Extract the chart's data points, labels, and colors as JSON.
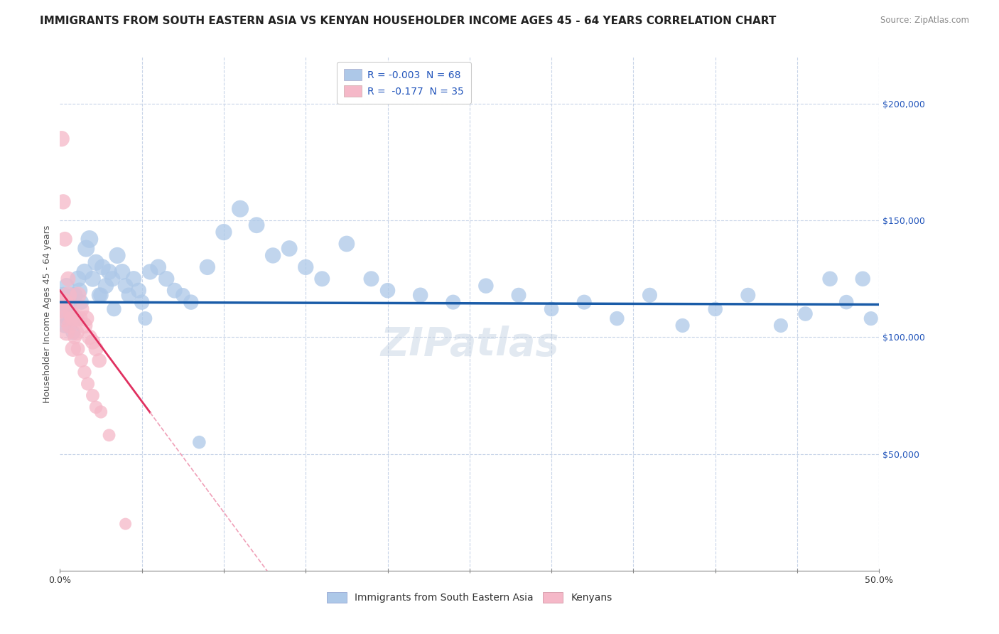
{
  "title": "IMMIGRANTS FROM SOUTH EASTERN ASIA VS KENYAN HOUSEHOLDER INCOME AGES 45 - 64 YEARS CORRELATION CHART",
  "source": "Source: ZipAtlas.com",
  "ylabel": "Householder Income Ages 45 - 64 years",
  "xlim": [
    0,
    0.5
  ],
  "ylim": [
    0,
    220000
  ],
  "xtick_positions": [
    0.0,
    0.05,
    0.1,
    0.15,
    0.2,
    0.25,
    0.3,
    0.35,
    0.4,
    0.45,
    0.5
  ],
  "xtick_labels_visible": {
    "0.0": "0.0%",
    "0.5": "50.0%"
  },
  "ytick_labels": [
    "$50,000",
    "$100,000",
    "$150,000",
    "$200,000"
  ],
  "ytick_values": [
    50000,
    100000,
    150000,
    200000
  ],
  "legend1_label": "R = -0.003  N = 68",
  "legend2_label": "R =  -0.177  N = 35",
  "legend1_color": "#adc8e8",
  "legend2_color": "#f5b8c8",
  "trend1_color": "#1a5ca8",
  "trend2_color": "#e03060",
  "trend2_dashed_color": "#f0a0b8",
  "watermark": "ZIPatlas",
  "background_color": "#ffffff",
  "grid_color": "#c8d4e8",
  "blue_x": [
    0.001,
    0.002,
    0.003,
    0.004,
    0.005,
    0.006,
    0.007,
    0.008,
    0.009,
    0.01,
    0.011,
    0.012,
    0.013,
    0.015,
    0.016,
    0.018,
    0.02,
    0.022,
    0.024,
    0.026,
    0.028,
    0.03,
    0.032,
    0.035,
    0.038,
    0.04,
    0.042,
    0.045,
    0.048,
    0.05,
    0.055,
    0.06,
    0.065,
    0.07,
    0.08,
    0.09,
    0.1,
    0.11,
    0.12,
    0.13,
    0.14,
    0.15,
    0.16,
    0.175,
    0.19,
    0.2,
    0.22,
    0.24,
    0.26,
    0.28,
    0.3,
    0.32,
    0.34,
    0.36,
    0.38,
    0.4,
    0.42,
    0.44,
    0.455,
    0.47,
    0.48,
    0.49,
    0.495,
    0.025,
    0.033,
    0.052,
    0.075,
    0.085
  ],
  "blue_y": [
    112000,
    118000,
    105000,
    122000,
    108000,
    115000,
    110000,
    102000,
    118000,
    108000,
    125000,
    120000,
    115000,
    128000,
    138000,
    142000,
    125000,
    132000,
    118000,
    130000,
    122000,
    128000,
    125000,
    135000,
    128000,
    122000,
    118000,
    125000,
    120000,
    115000,
    128000,
    130000,
    125000,
    120000,
    115000,
    130000,
    145000,
    155000,
    148000,
    135000,
    138000,
    130000,
    125000,
    140000,
    125000,
    120000,
    118000,
    115000,
    122000,
    118000,
    112000,
    115000,
    108000,
    118000,
    105000,
    112000,
    118000,
    105000,
    110000,
    125000,
    115000,
    125000,
    108000,
    118000,
    112000,
    108000,
    118000,
    55000
  ],
  "blue_size": [
    300,
    280,
    250,
    260,
    270,
    240,
    260,
    230,
    270,
    250,
    280,
    260,
    240,
    280,
    300,
    320,
    270,
    280,
    250,
    270,
    260,
    270,
    260,
    280,
    270,
    250,
    240,
    260,
    250,
    240,
    260,
    270,
    260,
    250,
    240,
    260,
    280,
    300,
    270,
    260,
    270,
    260,
    250,
    270,
    250,
    240,
    240,
    230,
    240,
    230,
    220,
    230,
    220,
    230,
    210,
    220,
    230,
    210,
    220,
    240,
    220,
    240,
    210,
    240,
    220,
    210,
    220,
    180
  ],
  "pink_x": [
    0.001,
    0.002,
    0.003,
    0.004,
    0.005,
    0.006,
    0.007,
    0.008,
    0.009,
    0.01,
    0.011,
    0.012,
    0.013,
    0.015,
    0.016,
    0.018,
    0.02,
    0.022,
    0.024,
    0.001,
    0.002,
    0.003,
    0.004,
    0.005,
    0.007,
    0.009,
    0.011,
    0.013,
    0.015,
    0.017,
    0.02,
    0.022,
    0.025,
    0.03,
    0.04
  ],
  "pink_y": [
    112000,
    108000,
    115000,
    102000,
    118000,
    105000,
    110000,
    95000,
    108000,
    102000,
    118000,
    108000,
    112000,
    105000,
    108000,
    100000,
    98000,
    95000,
    90000,
    185000,
    158000,
    142000,
    115000,
    125000,
    108000,
    100000,
    95000,
    90000,
    85000,
    80000,
    75000,
    70000,
    68000,
    58000,
    20000
  ],
  "pink_size": [
    350,
    300,
    320,
    280,
    310,
    270,
    290,
    260,
    280,
    260,
    290,
    270,
    260,
    270,
    260,
    250,
    240,
    230,
    220,
    260,
    240,
    230,
    220,
    230,
    220,
    210,
    200,
    200,
    195,
    190,
    185,
    180,
    175,
    165,
    150
  ],
  "trend1_intercept": 115000,
  "trend1_slope": -2000,
  "trend2_intercept": 120000,
  "trend2_slope": -950000,
  "trend2_solid_end": 0.055,
  "title_fontsize": 11,
  "axis_label_fontsize": 9,
  "tick_fontsize": 9,
  "legend_fontsize": 10
}
